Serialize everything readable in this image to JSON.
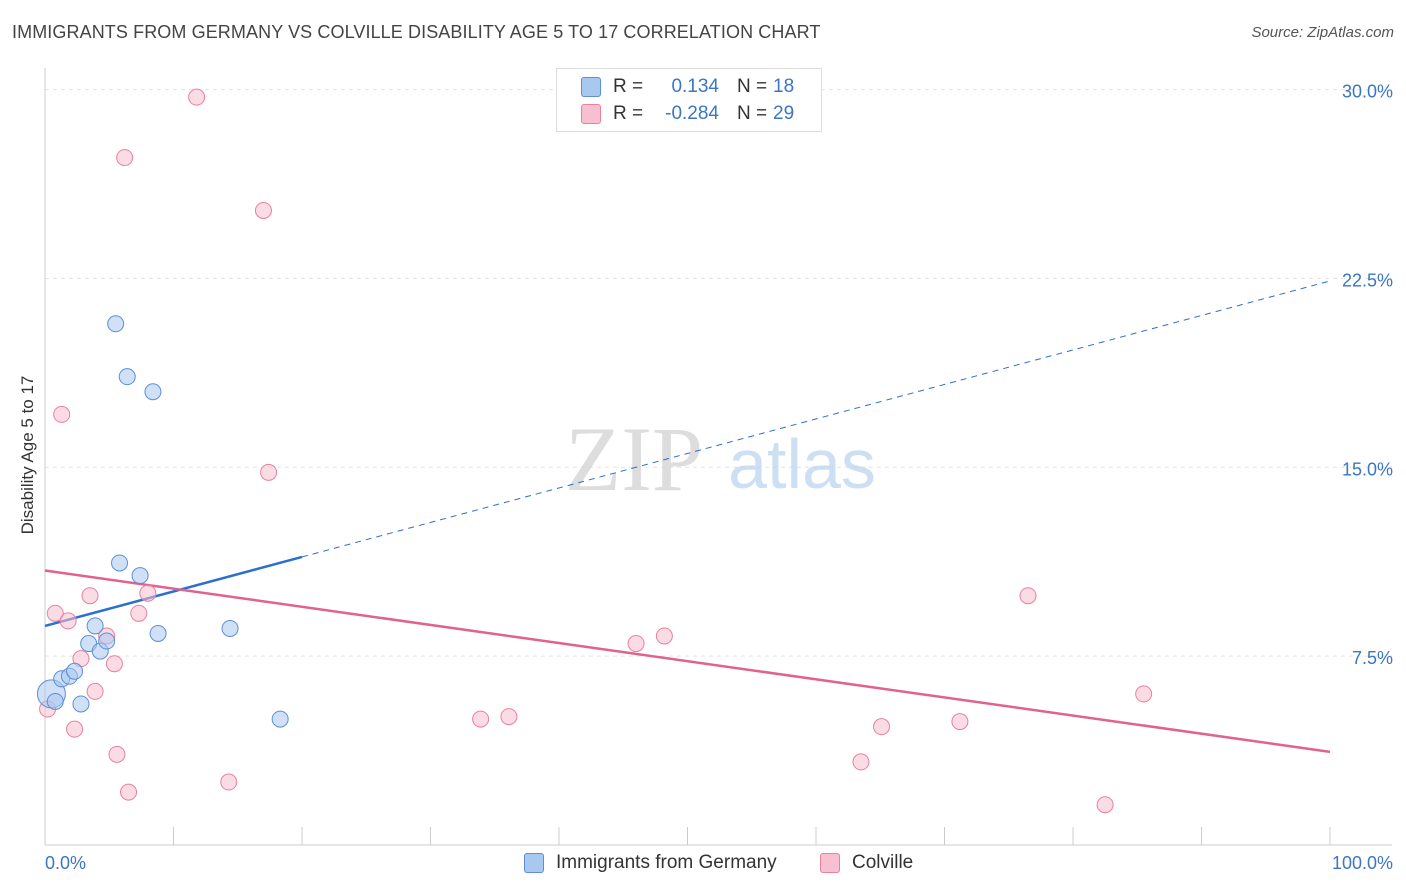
{
  "header": {
    "title": "IMMIGRANTS FROM GERMANY VS COLVILLE DISABILITY AGE 5 TO 17 CORRELATION CHART",
    "source": "Source: ZipAtlas.com"
  },
  "watermark": {
    "zip": "ZIP",
    "atlas": "atlas"
  },
  "legend": {
    "rows": [
      {
        "r_label": "R =",
        "r_value": "0.134",
        "n_label": "N =",
        "n_value": "18"
      },
      {
        "r_label": "R =",
        "r_value": "-0.284",
        "n_label": "N =",
        "n_value": "29"
      }
    ]
  },
  "chart_data": {
    "type": "scatter",
    "title": "IMMIGRANTS FROM GERMANY VS COLVILLE DISABILITY AGE 5 TO 17 CORRELATION CHART",
    "xlabel": "",
    "ylabel": "Disability Age 5 to 17",
    "xlim": [
      0,
      100
    ],
    "ylim": [
      0,
      30.5
    ],
    "x_tick_labels": [
      "0.0%",
      "100.0%"
    ],
    "y_ticks": [
      {
        "value": 7.5,
        "label": "7.5%"
      },
      {
        "value": 15.0,
        "label": "15.0%"
      },
      {
        "value": 22.5,
        "label": "22.5%"
      },
      {
        "value": 30.0,
        "label": "30.0%"
      }
    ],
    "grid": true,
    "colors": {
      "germany_fill": "#a9c8f0",
      "germany_stroke": "#5b8fd6",
      "germany_line": "#2d6fcc",
      "colville_fill": "#f7bfd0",
      "colville_stroke": "#e8809f",
      "colville_line": "#e0628d",
      "tick_label": "#3a76c4"
    },
    "series": [
      {
        "name": "Immigrants from Germany",
        "r": 0.134,
        "n": 18,
        "trend": {
          "x0": 0,
          "y0": 8.7,
          "x1": 100,
          "y1": 22.4,
          "solid_until_x": 20
        },
        "points": [
          {
            "x": 0.5,
            "y": 6.0
          },
          {
            "x": 0.8,
            "y": 5.7
          },
          {
            "x": 1.3,
            "y": 6.6
          },
          {
            "x": 1.9,
            "y": 6.7
          },
          {
            "x": 2.3,
            "y": 6.9
          },
          {
            "x": 2.8,
            "y": 5.6
          },
          {
            "x": 3.4,
            "y": 8.0
          },
          {
            "x": 3.9,
            "y": 8.7
          },
          {
            "x": 4.3,
            "y": 7.7
          },
          {
            "x": 4.8,
            "y": 8.1
          },
          {
            "x": 5.5,
            "y": 20.7
          },
          {
            "x": 5.8,
            "y": 11.2
          },
          {
            "x": 6.4,
            "y": 18.6
          },
          {
            "x": 7.4,
            "y": 10.7
          },
          {
            "x": 8.4,
            "y": 18.0
          },
          {
            "x": 8.8,
            "y": 8.4
          },
          {
            "x": 14.4,
            "y": 8.6
          },
          {
            "x": 18.3,
            "y": 5.0
          }
        ]
      },
      {
        "name": "Colville",
        "r": -0.284,
        "n": 29,
        "trend": {
          "x0": 0,
          "y0": 10.9,
          "x1": 100,
          "y1": 3.7
        },
        "points": [
          {
            "x": 0.2,
            "y": 5.4
          },
          {
            "x": 0.8,
            "y": 9.2
          },
          {
            "x": 1.3,
            "y": 17.1
          },
          {
            "x": 1.8,
            "y": 8.9
          },
          {
            "x": 2.3,
            "y": 4.6
          },
          {
            "x": 2.8,
            "y": 7.4
          },
          {
            "x": 3.5,
            "y": 9.9
          },
          {
            "x": 3.9,
            "y": 6.1
          },
          {
            "x": 4.8,
            "y": 8.3
          },
          {
            "x": 5.4,
            "y": 7.2
          },
          {
            "x": 5.6,
            "y": 3.6
          },
          {
            "x": 6.2,
            "y": 27.3
          },
          {
            "x": 6.5,
            "y": 2.1
          },
          {
            "x": 7.3,
            "y": 9.2
          },
          {
            "x": 8.0,
            "y": 10.0
          },
          {
            "x": 11.8,
            "y": 29.7
          },
          {
            "x": 14.3,
            "y": 2.5
          },
          {
            "x": 17.0,
            "y": 25.2
          },
          {
            "x": 17.4,
            "y": 14.8
          },
          {
            "x": 33.9,
            "y": 5.0
          },
          {
            "x": 36.1,
            "y": 5.1
          },
          {
            "x": 46.0,
            "y": 8.0
          },
          {
            "x": 48.2,
            "y": 8.3
          },
          {
            "x": 63.5,
            "y": 3.3
          },
          {
            "x": 65.1,
            "y": 4.7
          },
          {
            "x": 71.2,
            "y": 4.9
          },
          {
            "x": 76.5,
            "y": 9.9
          },
          {
            "x": 82.5,
            "y": 1.6
          },
          {
            "x": 85.5,
            "y": 6.0
          }
        ]
      }
    ]
  }
}
